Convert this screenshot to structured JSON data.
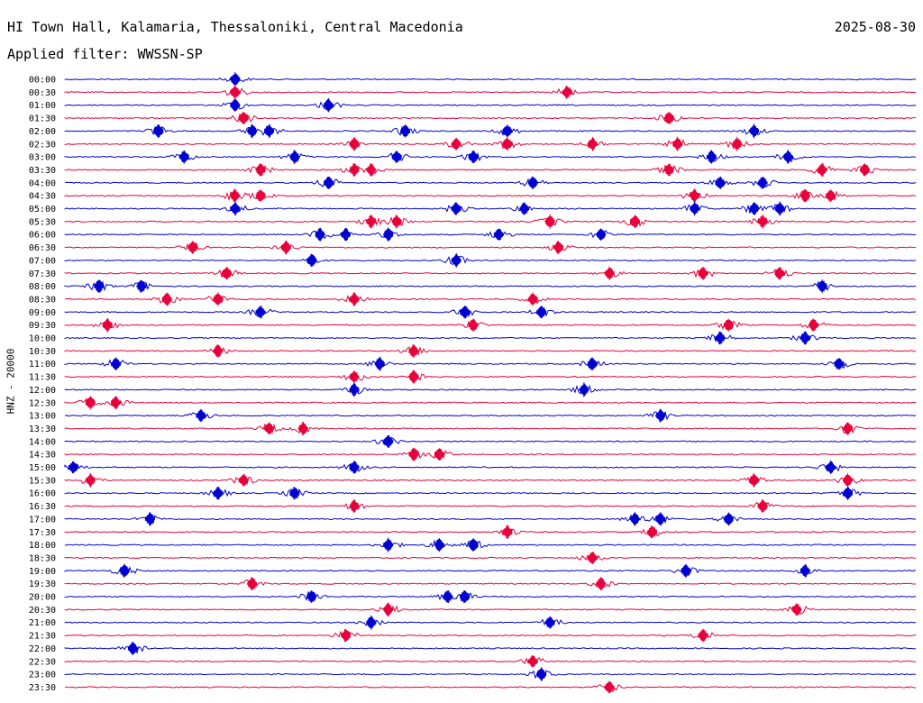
{
  "header": {
    "station": "HI Town Hall, Kalamaria, Thessaloniki, Central Macedonia",
    "date": "2025-08-30",
    "filter": "Applied filter: WWSSN-SP"
  },
  "chart_data": {
    "type": "helicorder",
    "channel_label": "HNZ - 20000",
    "colors": [
      "#0000d0",
      "#e8003a"
    ],
    "rows": [
      {
        "time": "00:00",
        "events": [
          0.2
        ]
      },
      {
        "time": "00:30",
        "events": [
          0.2,
          0.59
        ]
      },
      {
        "time": "01:00",
        "events": [
          0.2,
          0.31
        ]
      },
      {
        "time": "01:30",
        "events": [
          0.21,
          0.71
        ]
      },
      {
        "time": "02:00",
        "events": [
          0.11,
          0.22,
          0.24,
          0.4,
          0.52,
          0.81
        ]
      },
      {
        "time": "02:30",
        "events": [
          0.34,
          0.46,
          0.52,
          0.62,
          0.72,
          0.79
        ]
      },
      {
        "time": "03:00",
        "events": [
          0.14,
          0.27,
          0.39,
          0.48,
          0.76,
          0.85
        ]
      },
      {
        "time": "03:30",
        "events": [
          0.23,
          0.34,
          0.36,
          0.71,
          0.89,
          0.94
        ]
      },
      {
        "time": "04:00",
        "events": [
          0.31,
          0.55,
          0.77,
          0.82
        ]
      },
      {
        "time": "04:30",
        "events": [
          0.2,
          0.23,
          0.74,
          0.87,
          0.9
        ]
      },
      {
        "time": "05:00",
        "events": [
          0.2,
          0.46,
          0.54,
          0.74,
          0.81,
          0.84
        ]
      },
      {
        "time": "05:30",
        "events": [
          0.36,
          0.39,
          0.57,
          0.67,
          0.82
        ]
      },
      {
        "time": "06:00",
        "events": [
          0.3,
          0.33,
          0.38,
          0.51,
          0.63
        ]
      },
      {
        "time": "06:30",
        "events": [
          0.15,
          0.26,
          0.58
        ]
      },
      {
        "time": "07:00",
        "events": [
          0.29,
          0.46
        ]
      },
      {
        "time": "07:30",
        "events": [
          0.19,
          0.64,
          0.75,
          0.84
        ]
      },
      {
        "time": "08:00",
        "events": [
          0.04,
          0.09,
          0.89
        ]
      },
      {
        "time": "08:30",
        "events": [
          0.12,
          0.18,
          0.34,
          0.55
        ]
      },
      {
        "time": "09:00",
        "events": [
          0.23,
          0.47,
          0.56
        ]
      },
      {
        "time": "09:30",
        "events": [
          0.05,
          0.48,
          0.78,
          0.88
        ]
      },
      {
        "time": "10:00",
        "events": [
          0.77,
          0.87
        ]
      },
      {
        "time": "10:30",
        "events": [
          0.18,
          0.41
        ]
      },
      {
        "time": "11:00",
        "events": [
          0.06,
          0.37,
          0.62,
          0.91
        ]
      },
      {
        "time": "11:30",
        "events": [
          0.34,
          0.41
        ]
      },
      {
        "time": "12:00",
        "events": [
          0.34,
          0.61
        ]
      },
      {
        "time": "12:30",
        "events": [
          0.03,
          0.06
        ]
      },
      {
        "time": "13:00",
        "events": [
          0.16,
          0.7
        ]
      },
      {
        "time": "13:30",
        "events": [
          0.24,
          0.28,
          0.92
        ]
      },
      {
        "time": "14:00",
        "events": [
          0.38
        ]
      },
      {
        "time": "14:30",
        "events": [
          0.41,
          0.44
        ]
      },
      {
        "time": "15:00",
        "events": [
          0.01,
          0.34,
          0.9
        ]
      },
      {
        "time": "15:30",
        "events": [
          0.03,
          0.21,
          0.81,
          0.92
        ]
      },
      {
        "time": "16:00",
        "events": [
          0.18,
          0.27,
          0.92
        ]
      },
      {
        "time": "16:30",
        "events": [
          0.34,
          0.82
        ]
      },
      {
        "time": "17:00",
        "events": [
          0.1,
          0.67,
          0.7,
          0.78
        ]
      },
      {
        "time": "17:30",
        "events": [
          0.52,
          0.69
        ]
      },
      {
        "time": "18:00",
        "events": [
          0.38,
          0.44,
          0.48
        ]
      },
      {
        "time": "18:30",
        "events": [
          0.62
        ]
      },
      {
        "time": "19:00",
        "events": [
          0.07,
          0.73,
          0.87
        ]
      },
      {
        "time": "19:30",
        "events": [
          0.22,
          0.63
        ]
      },
      {
        "time": "20:00",
        "events": [
          0.29,
          0.45,
          0.47
        ]
      },
      {
        "time": "20:30",
        "events": [
          0.38,
          0.86
        ]
      },
      {
        "time": "21:00",
        "events": [
          0.36,
          0.57
        ]
      },
      {
        "time": "21:30",
        "events": [
          0.33,
          0.75
        ]
      },
      {
        "time": "22:00",
        "events": [
          0.08
        ]
      },
      {
        "time": "22:30",
        "events": [
          0.55
        ]
      },
      {
        "time": "23:00",
        "events": [
          0.56
        ]
      },
      {
        "time": "23:30",
        "events": [
          0.64
        ]
      }
    ]
  }
}
